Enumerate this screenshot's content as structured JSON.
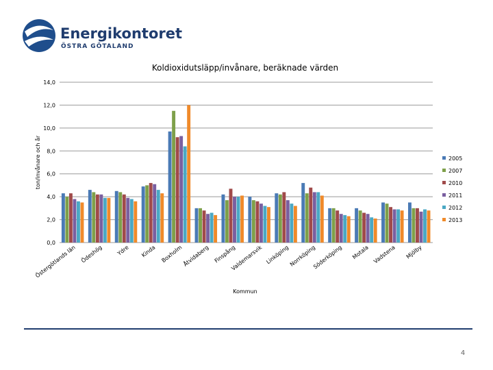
{
  "header": {
    "logo_name": "Energikontoret",
    "logo_sub": "ÖSTRA GÖTALAND"
  },
  "chart_data": {
    "type": "bar",
    "title": "Koldioxidutsläpp/invånare, beräknade värden",
    "y_label": "ton/invånare och år",
    "x_label": "Kommun",
    "categories": [
      "Östergötlands län",
      "Ödeshög",
      "Ydre",
      "Kinda",
      "Boxholm",
      "Åtvidaberg",
      "Finspång",
      "Valdemarsvik",
      "Linköping",
      "Norrköping",
      "Söderköping",
      "Motala",
      "Vadstena",
      "Mjölby"
    ],
    "series": [
      {
        "name": "2005",
        "color": "#4a7ab5",
        "values": [
          4.3,
          4.6,
          4.5,
          4.9,
          9.7,
          3.0,
          4.2,
          4.0,
          4.3,
          5.2,
          3.0,
          3.0,
          3.5,
          3.5
        ]
      },
      {
        "name": "2007",
        "color": "#7ea04a",
        "values": [
          4.0,
          4.4,
          4.4,
          5.0,
          11.5,
          3.0,
          3.7,
          3.7,
          4.2,
          4.3,
          3.0,
          2.8,
          3.4,
          3.0
        ]
      },
      {
        "name": "2010",
        "color": "#a04a4a",
        "values": [
          4.3,
          4.2,
          4.2,
          5.2,
          9.2,
          2.8,
          4.7,
          3.6,
          4.4,
          4.8,
          2.8,
          2.6,
          3.1,
          3.0
        ]
      },
      {
        "name": "2011",
        "color": "#7a5fa0",
        "values": [
          3.8,
          4.2,
          3.9,
          5.1,
          9.3,
          2.5,
          4.0,
          3.4,
          3.7,
          4.4,
          2.5,
          2.5,
          2.9,
          2.7
        ]
      },
      {
        "name": "2012",
        "color": "#4aa8c4",
        "values": [
          3.6,
          3.9,
          3.8,
          4.6,
          8.4,
          2.6,
          4.0,
          3.2,
          3.4,
          4.4,
          2.4,
          2.2,
          2.9,
          2.9
        ]
      },
      {
        "name": "2013",
        "color": "#f08a2a",
        "values": [
          3.5,
          3.9,
          3.6,
          4.3,
          12.0,
          2.4,
          4.1,
          3.1,
          3.2,
          4.1,
          2.3,
          2.1,
          2.8,
          2.8
        ]
      }
    ],
    "ylim": [
      0,
      14
    ],
    "yticks": [
      {
        "value": 0,
        "label": "0,0"
      },
      {
        "value": 2,
        "label": "2,0"
      },
      {
        "value": 4,
        "label": "4,0"
      },
      {
        "value": 6,
        "label": "6,0"
      },
      {
        "value": 8,
        "label": "8,0"
      },
      {
        "value": 10,
        "label": "10,0"
      },
      {
        "value": 12,
        "label": "12,0"
      },
      {
        "value": 14,
        "label": "14,0"
      }
    ],
    "grid": true,
    "legend": "right"
  },
  "footer": {
    "page": "4"
  }
}
